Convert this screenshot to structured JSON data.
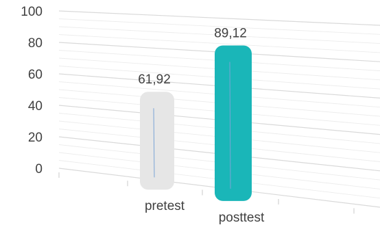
{
  "chart_data": {
    "type": "bar",
    "categories": [
      "pretest",
      "posttest"
    ],
    "values": [
      61.92,
      89.12
    ],
    "value_labels": [
      "61,92",
      "89,12"
    ],
    "colors": [
      "#e6e6e6",
      "#1ab6b8"
    ],
    "ylim": [
      0,
      100
    ],
    "yticks": [
      0,
      20,
      40,
      60,
      80,
      100
    ],
    "ytick_labels": [
      "0",
      "20",
      "40",
      "60",
      "80",
      "100"
    ],
    "grid": true,
    "legend": "none",
    "style": "3d-perspective"
  }
}
